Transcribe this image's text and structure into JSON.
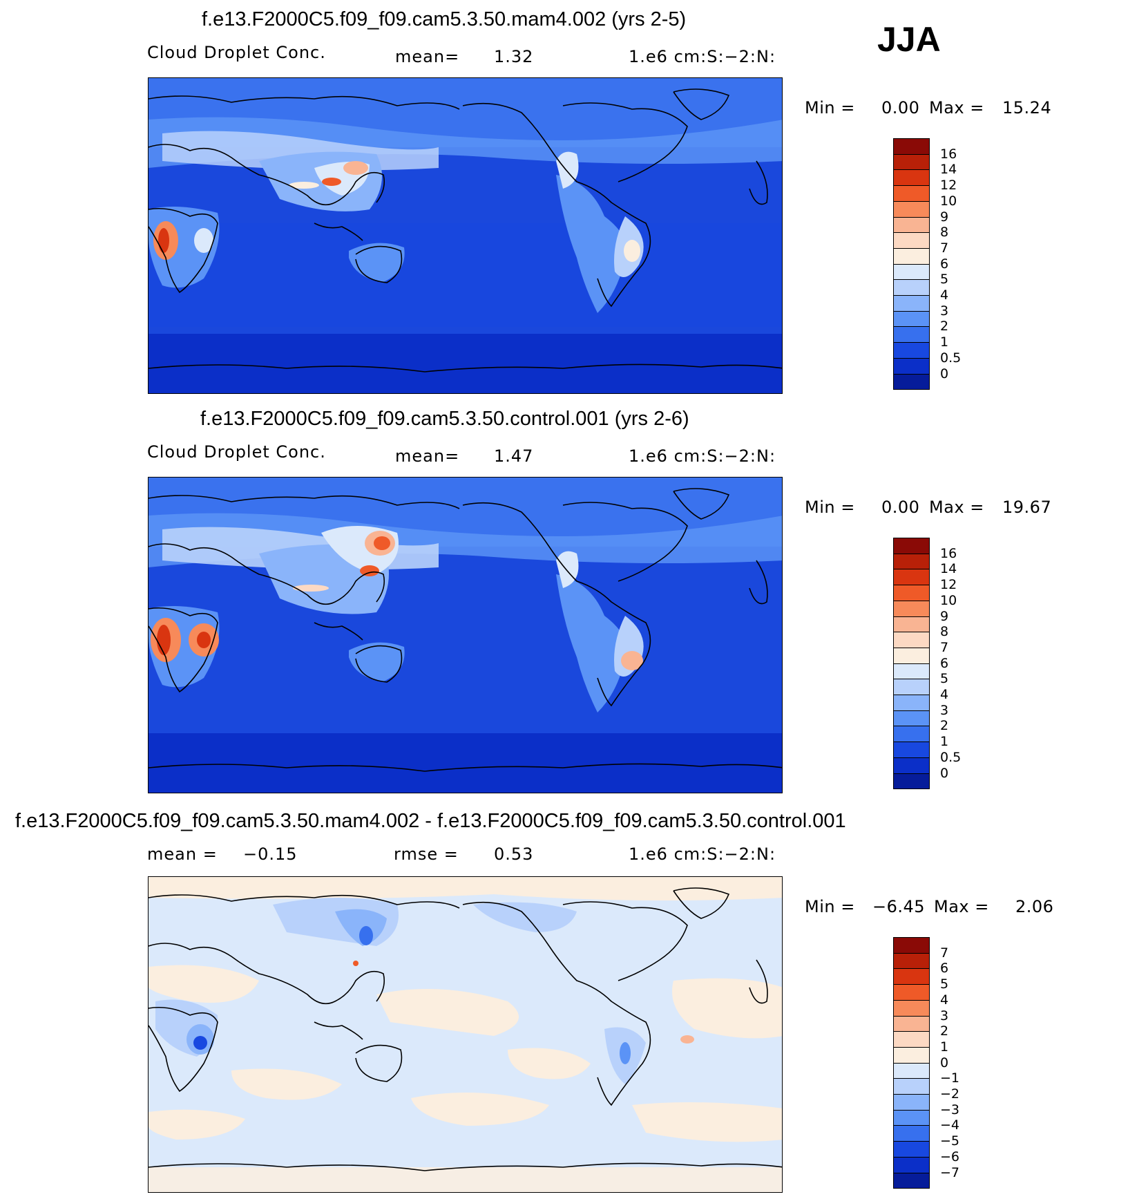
{
  "season": "JJA",
  "panels": [
    {
      "title": "f.e13.F2000C5.f09_f09.cam5.3.50.mam4.002 (yrs 2-5)",
      "variable": "Cloud Droplet Conc.",
      "stat_label": "mean=",
      "stat_value": "1.32",
      "units": "1.e6 cm:S:-2:N:",
      "min_label": "Min =",
      "min_value": "0.00",
      "max_label": "Max =",
      "max_value": "15.24",
      "colorbar_labels": [
        "16",
        "14",
        "12",
        "10",
        "9",
        "8",
        "7",
        "6",
        "5",
        "4",
        "3",
        "2",
        "1",
        "0.5",
        "0"
      ],
      "colorbar_colors": [
        "#8a0a06",
        "#b82008",
        "#d93510",
        "#ef5a28",
        "#f78a5a",
        "#f9b493",
        "#fcd9c3",
        "#fbeedf",
        "#dbe9fb",
        "#b8d1fb",
        "#8ab4fa",
        "#5b93f6",
        "#3770ee",
        "#1848e0",
        "#0b2fc8",
        "#061c9a"
      ]
    },
    {
      "title": "f.e13.F2000C5.f09_f09.cam5.3.50.control.001 (yrs 2-6)",
      "variable": "Cloud Droplet Conc.",
      "stat_label": "mean=",
      "stat_value": "1.47",
      "units": "1.e6 cm:S:-2:N:",
      "min_label": "Min =",
      "min_value": "0.00",
      "max_label": "Max =",
      "max_value": "19.67",
      "colorbar_labels": [
        "16",
        "14",
        "12",
        "10",
        "9",
        "8",
        "7",
        "6",
        "5",
        "4",
        "3",
        "2",
        "1",
        "0.5",
        "0"
      ],
      "colorbar_colors": [
        "#8a0a06",
        "#b82008",
        "#d93510",
        "#ef5a28",
        "#f78a5a",
        "#f9b493",
        "#fcd9c3",
        "#fbeedf",
        "#dbe9fb",
        "#b8d1fb",
        "#8ab4fa",
        "#5b93f6",
        "#3770ee",
        "#1848e0",
        "#0b2fc8",
        "#061c9a"
      ]
    },
    {
      "title": "f.e13.F2000C5.f09_f09.cam5.3.50.mam4.002 - f.e13.F2000C5.f09_f09.cam5.3.50.control.001",
      "mean_label": "mean =",
      "mean_value": "-0.15",
      "rmse_label": "rmse =",
      "rmse_value": "0.53",
      "units": "1.e6 cm:S:-2:N:",
      "min_label": "Min =",
      "min_value": "-6.45",
      "max_label": "Max =",
      "max_value": "2.06",
      "colorbar_labels": [
        "7",
        "6",
        "5",
        "4",
        "3",
        "2",
        "1",
        "0",
        "-1",
        "-2",
        "-3",
        "-4",
        "-5",
        "-6",
        "-7"
      ],
      "colorbar_colors": [
        "#8a0a06",
        "#b82008",
        "#d93510",
        "#ef5a28",
        "#f78a5a",
        "#f9b493",
        "#fcd9c3",
        "#fbeedf",
        "#dbe9fb",
        "#b8d1fb",
        "#8ab4fa",
        "#5b93f6",
        "#3770ee",
        "#1848e0",
        "#0b2fc8",
        "#061c9a"
      ]
    }
  ]
}
